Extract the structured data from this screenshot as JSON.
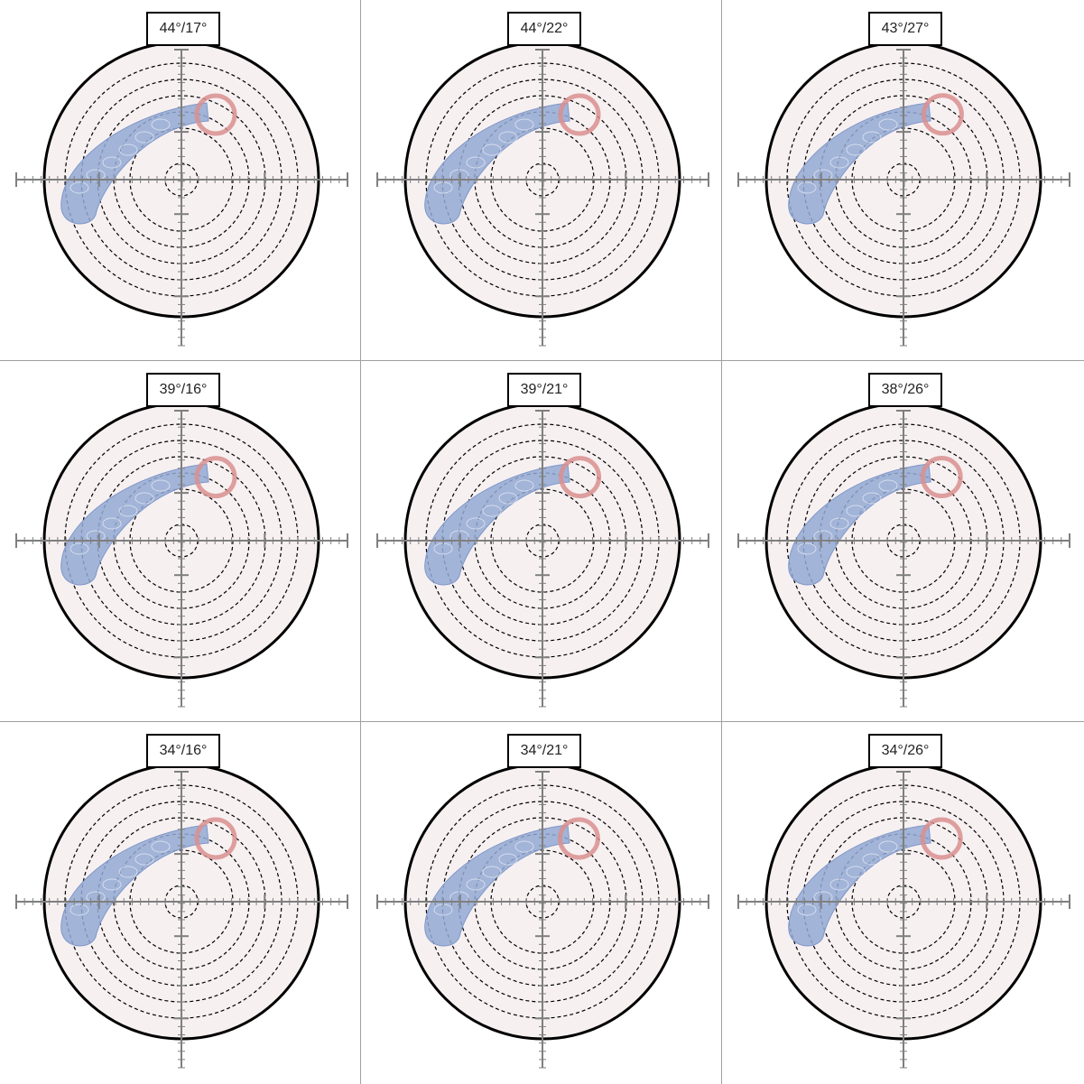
{
  "colors": {
    "disc_fill": "#f7f0f1",
    "disc_stroke": "#000000",
    "ring_stroke": "#000000",
    "axis": "#7f7f7f",
    "blue_band": "#93a9d4",
    "red_ring": "#d98f8f"
  },
  "chart_data": [
    {
      "type": "scatter",
      "title": "44°/17°"
    },
    {
      "type": "scatter",
      "title": "44°/22°"
    },
    {
      "type": "scatter",
      "title": "43°/27°"
    },
    {
      "type": "scatter",
      "title": "39°/16°"
    },
    {
      "type": "scatter",
      "title": "39°/21°"
    },
    {
      "type": "scatter",
      "title": "38°/26°"
    },
    {
      "type": "scatter",
      "title": "34°/16°"
    },
    {
      "type": "scatter",
      "title": "34°/21°"
    },
    {
      "type": "scatter",
      "title": "34°/26°"
    }
  ]
}
